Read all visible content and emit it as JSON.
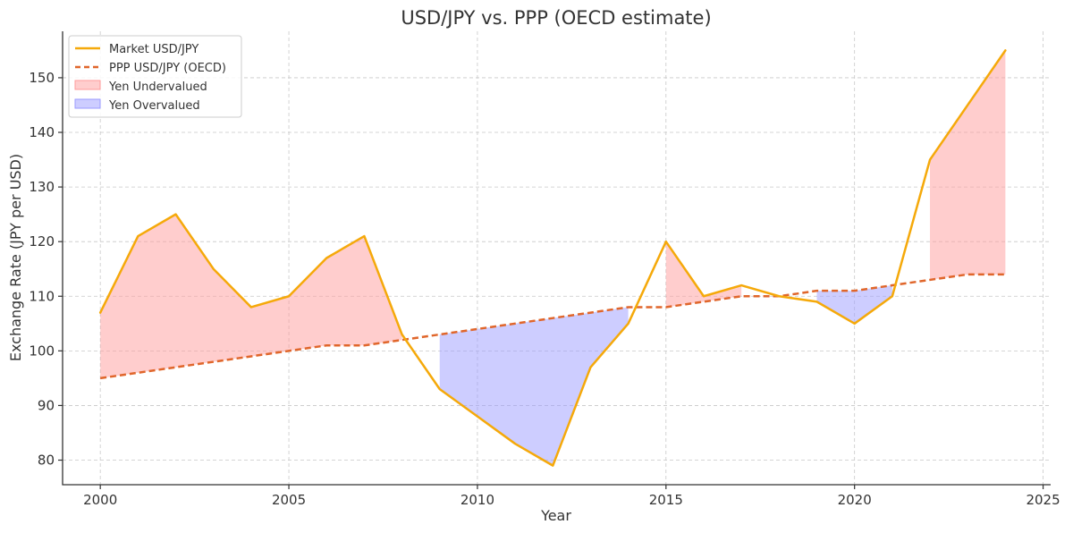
{
  "chart_data": {
    "type": "line",
    "title": "USD/JPY vs. PPP (OECD estimate)",
    "xlabel": "Year",
    "ylabel": "Exchange Rate (JPY per USD)",
    "xlim": [
      1999,
      2025.2
    ],
    "ylim": [
      75.5,
      158.5
    ],
    "xticks": [
      2000,
      2005,
      2010,
      2015,
      2020,
      2025
    ],
    "yticks": [
      80,
      90,
      100,
      110,
      120,
      130,
      140,
      150
    ],
    "grid": true,
    "legend_position": "top-left",
    "x": [
      2000,
      2001,
      2002,
      2003,
      2004,
      2005,
      2006,
      2007,
      2008,
      2009,
      2010,
      2011,
      2012,
      2013,
      2014,
      2015,
      2016,
      2017,
      2018,
      2019,
      2020,
      2021,
      2022,
      2023,
      2024
    ],
    "series": [
      {
        "name": "Market USD/JPY",
        "style": "solid",
        "color": "#f5a90a",
        "values": [
          107,
          121,
          125,
          115,
          108,
          110,
          117,
          121,
          103,
          93,
          88,
          83,
          79,
          97,
          105,
          120,
          110,
          112,
          110,
          109,
          105,
          110,
          135,
          145,
          155
        ]
      },
      {
        "name": "PPP USD/JPY (OECD)",
        "style": "dashed",
        "color": "#e0662b",
        "values": [
          95,
          96,
          97,
          98,
          99,
          100,
          101,
          101,
          102,
          103,
          104,
          105,
          106,
          107,
          108,
          108,
          109,
          110,
          110,
          111,
          111,
          112,
          113,
          114,
          114
        ]
      }
    ],
    "fills": [
      {
        "name": "Yen Undervalued",
        "color": "#ff9b9b",
        "opacity": 0.5,
        "ranges": [
          [
            2000,
            2008
          ],
          [
            2015,
            2017
          ],
          [
            2022,
            2024
          ]
        ]
      },
      {
        "name": "Yen Overvalued",
        "color": "#9b9bff",
        "opacity": 0.5,
        "ranges": [
          [
            2009,
            2014
          ],
          [
            2019,
            2021
          ]
        ]
      }
    ]
  }
}
